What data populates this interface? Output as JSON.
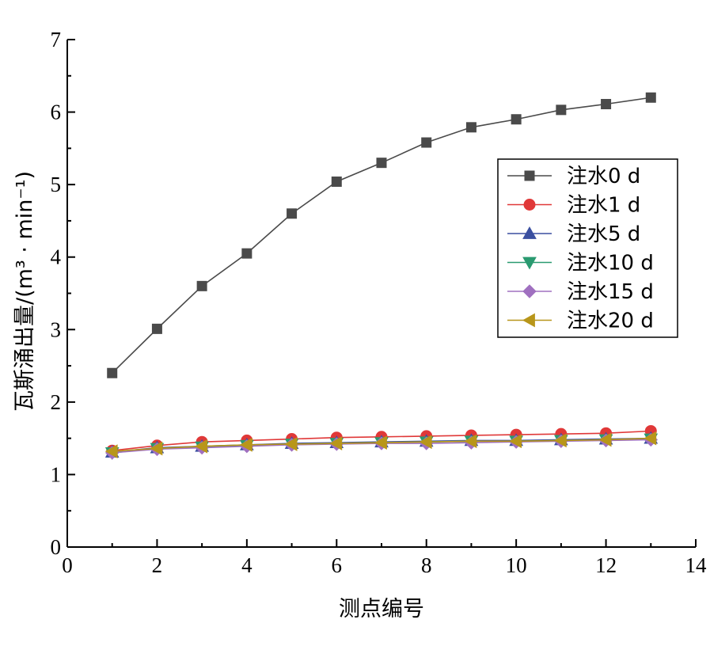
{
  "chart_data": {
    "type": "line",
    "xlabel": "测点编号",
    "ylabel": "瓦斯涌出量/(m³ · min⁻¹)",
    "xlim": [
      0,
      14
    ],
    "ylim": [
      0,
      7
    ],
    "x_ticks": [
      0,
      2,
      4,
      6,
      8,
      10,
      12,
      14
    ],
    "y_ticks": [
      0,
      1,
      2,
      3,
      4,
      5,
      6,
      7
    ],
    "grid": false,
    "legend_position": "center-right",
    "x": [
      1,
      2,
      3,
      4,
      5,
      6,
      7,
      8,
      9,
      10,
      11,
      12,
      13
    ],
    "series": [
      {
        "name": "注水0 d",
        "marker": "square",
        "color": "#4a4a4a",
        "values": [
          2.4,
          3.01,
          3.6,
          4.05,
          4.6,
          5.04,
          5.3,
          5.58,
          5.79,
          5.9,
          6.03,
          6.11,
          6.2
        ]
      },
      {
        "name": "注水1 d",
        "marker": "circle",
        "color": "#e03838",
        "values": [
          1.33,
          1.4,
          1.45,
          1.47,
          1.49,
          1.51,
          1.52,
          1.53,
          1.54,
          1.55,
          1.56,
          1.57,
          1.6
        ]
      },
      {
        "name": "注水5 d",
        "marker": "triangle-up",
        "color": "#3a4fa0",
        "values": [
          1.31,
          1.37,
          1.39,
          1.41,
          1.43,
          1.44,
          1.45,
          1.46,
          1.47,
          1.47,
          1.48,
          1.49,
          1.5
        ]
      },
      {
        "name": "注水10 d",
        "marker": "triangle-down",
        "color": "#2a9a70",
        "values": [
          1.3,
          1.36,
          1.38,
          1.4,
          1.42,
          1.43,
          1.44,
          1.45,
          1.46,
          1.46,
          1.47,
          1.48,
          1.49
        ]
      },
      {
        "name": "注水15 d",
        "marker": "diamond",
        "color": "#a070c0",
        "values": [
          1.3,
          1.35,
          1.37,
          1.39,
          1.41,
          1.42,
          1.43,
          1.43,
          1.44,
          1.45,
          1.46,
          1.47,
          1.48
        ]
      },
      {
        "name": "注水20 d",
        "marker": "triangle-left",
        "color": "#b8961a",
        "values": [
          1.32,
          1.36,
          1.39,
          1.41,
          1.42,
          1.43,
          1.44,
          1.45,
          1.46,
          1.46,
          1.47,
          1.48,
          1.5
        ]
      }
    ]
  }
}
